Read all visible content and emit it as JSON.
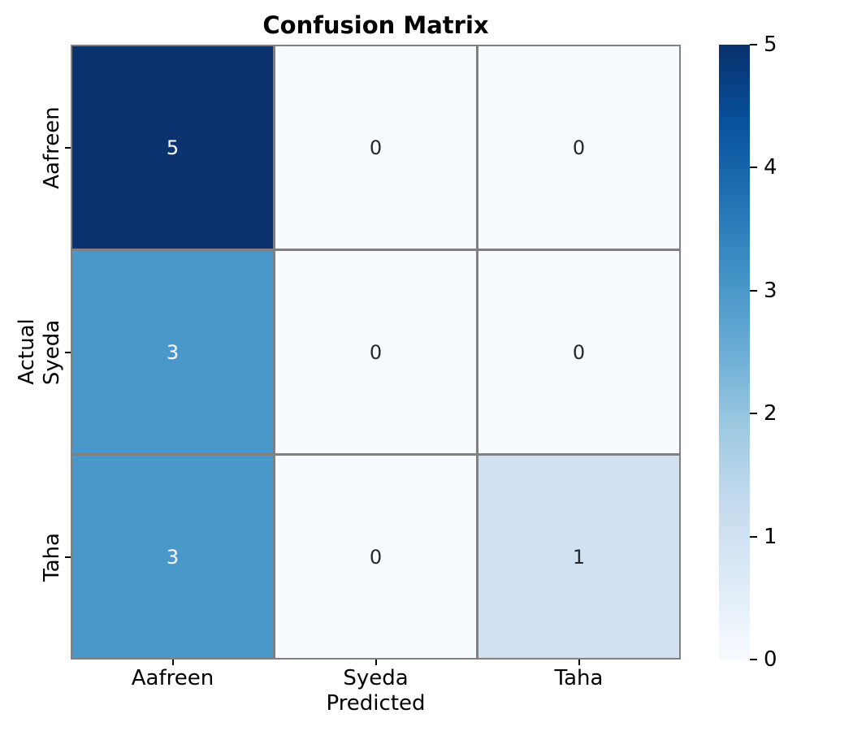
{
  "chart_data": {
    "type": "heatmap",
    "title": "Confusion Matrix",
    "xlabel": "Predicted",
    "ylabel": "Actual",
    "x_categories": [
      "Aafreen",
      "Syeda",
      "Taha"
    ],
    "y_categories": [
      "Aafreen",
      "Syeda",
      "Taha"
    ],
    "values": [
      [
        5,
        0,
        0
      ],
      [
        3,
        0,
        0
      ],
      [
        3,
        0,
        1
      ]
    ],
    "vmin": 0,
    "vmax": 5,
    "colormap": "Blues",
    "colorbar_ticks": [
      5,
      4,
      3,
      2,
      1,
      0
    ],
    "colorbar_position": "right",
    "cell_colors": [
      [
        "#0c3370",
        "#f7fbff",
        "#f7fbff"
      ],
      [
        "#4a97c9",
        "#f7fbff",
        "#f7fbff"
      ],
      [
        "#4a97c9",
        "#f7fbff",
        "#d0e1f2"
      ]
    ],
    "cell_text_colors": [
      [
        "#ffffff",
        "#262626",
        "#262626"
      ],
      [
        "#ffffff",
        "#262626",
        "#262626"
      ],
      [
        "#ffffff",
        "#262626",
        "#262626"
      ]
    ],
    "colorbar_gradient_bottom_to_top": [
      "#f7fbff",
      "#deebf7",
      "#c6dbef",
      "#9ecae1",
      "#6baed6",
      "#4292c6",
      "#2171b5",
      "#08519c",
      "#08306b"
    ],
    "grid_color": "#808080",
    "tick_color": "#000000",
    "background_color": "#ffffff"
  }
}
